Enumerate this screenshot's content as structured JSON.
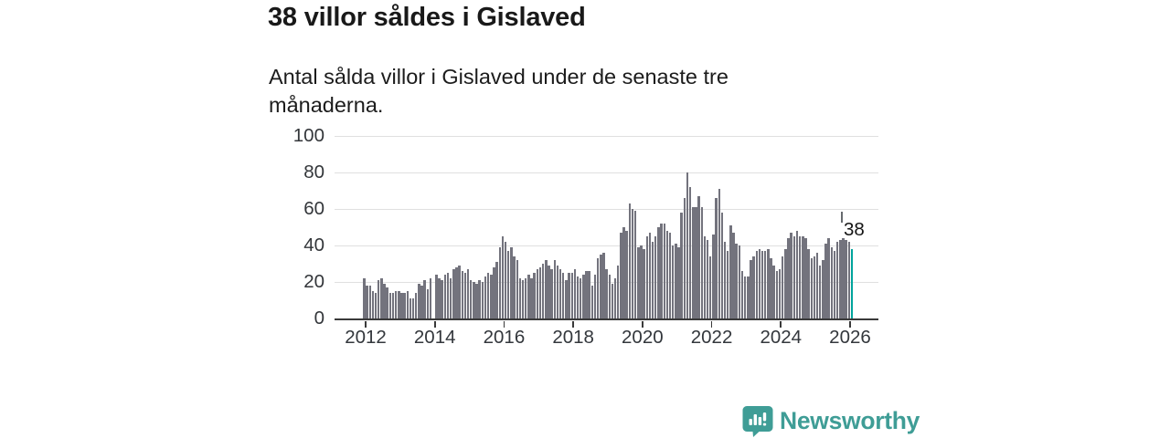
{
  "header": {
    "title": "38 villor såldes i Gislaved",
    "subtitle": "Antal sålda villor i Gislaved under de senaste tre månaderna."
  },
  "chart_data": {
    "type": "bar",
    "title": "38 villor såldes i Gislaved",
    "subtitle": "Antal sålda villor i Gislaved under de senaste tre månaderna.",
    "x_unit": "month",
    "x_range": [
      "2012-01",
      "2026-02"
    ],
    "ylabel": "",
    "xlabel": "",
    "ylim": [
      0,
      100
    ],
    "yticks": [
      0,
      20,
      40,
      60,
      80,
      100
    ],
    "xtick_years": [
      2012,
      2014,
      2016,
      2018,
      2020,
      2022,
      2024,
      2026
    ],
    "grid": true,
    "legend_position": "none",
    "bar_color": "#73737d",
    "highlight_color": "#00a49c",
    "highlight_index": 169,
    "annotation": {
      "text": "38",
      "value": 38
    },
    "values": [
      22,
      18,
      18,
      15,
      14,
      21,
      22,
      19,
      17,
      14,
      14,
      15,
      15,
      14,
      14,
      15,
      11,
      11,
      14,
      19,
      18,
      21,
      16,
      22,
      0,
      24,
      22,
      21,
      24,
      25,
      22,
      27,
      28,
      29,
      26,
      25,
      27,
      21,
      20,
      19,
      21,
      20,
      23,
      25,
      24,
      28,
      31,
      39,
      45,
      42,
      37,
      39,
      34,
      32,
      22,
      21,
      22,
      24,
      22,
      25,
      27,
      28,
      30,
      32,
      29,
      27,
      32,
      29,
      27,
      25,
      21,
      25,
      25,
      27,
      23,
      22,
      24,
      26,
      26,
      18,
      24,
      33,
      35,
      36,
      27,
      24,
      19,
      22,
      29,
      47,
      50,
      48,
      63,
      60,
      59,
      39,
      40,
      38,
      45,
      47,
      42,
      45,
      50,
      52,
      52,
      48,
      47,
      40,
      41,
      39,
      58,
      66,
      80,
      72,
      61,
      61,
      67,
      61,
      45,
      43,
      34,
      46,
      66,
      71,
      58,
      42,
      37,
      51,
      47,
      41,
      40,
      26,
      23,
      23,
      32,
      34,
      37,
      38,
      37,
      37,
      38,
      33,
      29,
      26,
      27,
      34,
      38,
      44,
      47,
      45,
      48,
      45,
      45,
      44,
      38,
      33,
      34,
      36,
      29,
      32,
      41,
      44,
      39,
      37,
      42,
      43,
      44,
      43,
      42,
      38
    ]
  },
  "branding": {
    "wordmark": "Newsworthy",
    "logo_icon": "newsworthy-speech-bubble-chart-icon",
    "brand_color": "#3f9d96"
  },
  "colors": {
    "bar": "#73737d",
    "highlight": "#00a49c",
    "axis": "#3a3a3a",
    "gridline": "#e0e0e0",
    "tick_text": "#33363a"
  }
}
